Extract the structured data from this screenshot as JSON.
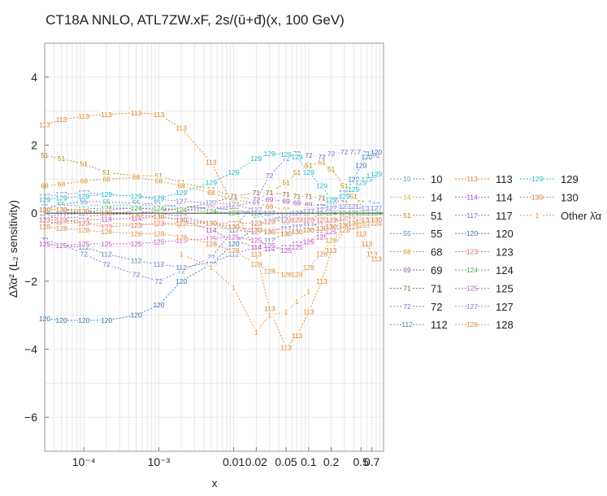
{
  "chart_data": {
    "type": "line",
    "title": "CT18A NNLO, ATL7ZW.xF, 2s/(ū+đ)(x, 100 GeV)",
    "xlabel": "x",
    "ylabel": "Δλ̄α² (L₂ sensitivity)",
    "xscale": "log",
    "xlim": [
      3e-05,
      1.0
    ],
    "ylim": [
      -7,
      5
    ],
    "x_ticks": [
      {
        "value": 0.0001,
        "label": "10⁻⁴"
      },
      {
        "value": 0.001,
        "label": "10⁻³"
      },
      {
        "value": 0.01,
        "label": "0.01"
      },
      {
        "value": 0.02,
        "label": "0.02"
      },
      {
        "value": 0.05,
        "label": "0.05"
      },
      {
        "value": 0.1,
        "label": "0.1"
      },
      {
        "value": 0.2,
        "label": "0.2"
      },
      {
        "value": 0.5,
        "label": "0.5"
      },
      {
        "value": 0.7,
        "label": "0.7"
      }
    ],
    "y_ticks": [
      4,
      2,
      0,
      -2,
      -4,
      -6
    ],
    "grid": true,
    "legend_position": "right",
    "x": [
      3e-05,
      5e-05,
      0.0001,
      0.0002,
      0.0005,
      0.001,
      0.002,
      0.005,
      0.01,
      0.02,
      0.03,
      0.05,
      0.07,
      0.1,
      0.15,
      0.2,
      0.3,
      0.4,
      0.5,
      0.6,
      0.7,
      0.8
    ],
    "series": [
      {
        "name": "10",
        "label": "10",
        "color": "#5b9bd5",
        "values": [
          0.2,
          0.22,
          0.23,
          0.24,
          0.24,
          0.22,
          0.18,
          0.15,
          0.1,
          -0.05,
          -0.15,
          -0.25,
          -0.2,
          -0.15,
          -0.1,
          -0.05,
          0.05,
          0.15,
          0.25,
          0.3,
          0.3,
          0.25
        ]
      },
      {
        "name": "14",
        "label": "14",
        "color": "#e8a33d",
        "values": [
          -0.3,
          -0.3,
          -0.3,
          -0.3,
          -0.32,
          -0.33,
          -0.35,
          -0.4,
          -0.5,
          -0.45,
          -0.5,
          -0.45,
          -0.4,
          -0.35,
          -0.3,
          -0.3,
          -0.25,
          -0.2,
          -0.15,
          -0.1,
          -0.05,
          0.0
        ]
      },
      {
        "name": "51",
        "label": "51",
        "color": "#b8860b",
        "values": [
          1.7,
          1.6,
          1.45,
          1.2,
          1.1,
          1.1,
          0.9,
          0.7,
          0.5,
          0.4,
          0.6,
          0.9,
          1.2,
          1.4,
          1.5,
          1.3,
          0.8,
          0.5,
          0.3,
          0.2,
          0.1,
          0.05
        ]
      },
      {
        "name": "55",
        "label": "55",
        "color": "#4a7fb0",
        "values": [
          0.1,
          0.25,
          0.35,
          0.33,
          0.3,
          0.26,
          0.2,
          0.15,
          0.1,
          0.0,
          -0.1,
          -0.2,
          -0.2,
          -0.15,
          -0.05,
          0.05,
          0.1,
          0.05,
          0.0,
          -0.05,
          -0.1,
          -0.1
        ]
      },
      {
        "name": "68",
        "label": "68",
        "color": "#d98c1f",
        "values": [
          0.8,
          0.85,
          0.95,
          1.0,
          1.05,
          0.95,
          0.8,
          0.6,
          0.4,
          0.3,
          0.2,
          0.1,
          0.05,
          0.0,
          -0.1,
          -0.15,
          -0.25,
          -0.3,
          -0.35,
          -0.35,
          -0.3,
          -0.3
        ]
      },
      {
        "name": "69",
        "label": "69",
        "color": "#9b4fb5",
        "values": [
          0.0,
          0.0,
          0.05,
          0.1,
          0.15,
          0.1,
          0.1,
          0.15,
          0.2,
          0.35,
          0.4,
          0.35,
          0.3,
          0.25,
          0.2,
          0.2,
          0.15,
          0.1,
          0.05,
          0.0,
          0.0,
          0.0
        ]
      },
      {
        "name": "71",
        "label": "71",
        "color": "#8b5a2b",
        "values": [
          -0.1,
          -0.15,
          -0.1,
          -0.05,
          0.0,
          0.05,
          0.15,
          0.3,
          0.5,
          0.6,
          0.6,
          0.55,
          0.5,
          0.5,
          0.45,
          0.4,
          0.3,
          0.2,
          0.1,
          0.1,
          0.05,
          0.05
        ]
      },
      {
        "name": "72",
        "label": "72",
        "color": "#7b68d6",
        "values": [
          -0.8,
          -0.9,
          -1.2,
          -1.5,
          -1.8,
          -2.0,
          -1.7,
          -1.3,
          -0.5,
          0.4,
          1.1,
          1.6,
          1.75,
          1.7,
          1.65,
          1.75,
          1.8,
          1.8,
          1.8,
          1.75,
          1.75,
          1.7
        ]
      },
      {
        "name": "112",
        "label": "112",
        "color": "#5a7dc0",
        "values": [
          -0.9,
          -0.95,
          -1.0,
          -1.2,
          -1.4,
          -1.5,
          -1.6,
          -1.45,
          -1.2,
          -1.0,
          -0.8,
          -0.6,
          -0.5,
          -0.4,
          -0.3,
          -0.2,
          -0.15,
          -0.1,
          -0.1,
          -0.1,
          -0.1,
          -0.1
        ]
      },
      {
        "name": "113",
        "label": "113",
        "color": "#e07b1a",
        "values": [
          2.6,
          2.75,
          2.85,
          2.9,
          2.95,
          2.9,
          2.5,
          1.5,
          0.2,
          -1.2,
          -2.8,
          -3.95,
          -3.6,
          -2.9,
          -2.0,
          -1.1,
          -0.5,
          -0.4,
          -0.6,
          -0.9,
          -1.2,
          -1.35
        ]
      },
      {
        "name": "114",
        "label": "114",
        "color": "#a347c4",
        "values": [
          -0.3,
          -0.25,
          -0.2,
          -0.18,
          -0.15,
          -0.1,
          -0.2,
          -0.5,
          -0.8,
          -1.0,
          -1.05,
          -1.0,
          -0.9,
          -0.8,
          -0.6,
          -0.4,
          -0.3,
          -0.2,
          -0.2,
          -0.25,
          -0.3,
          -0.3
        ]
      },
      {
        "name": "117",
        "label": "117",
        "color": "#6c6ccc",
        "values": [
          -0.1,
          -0.05,
          0.0,
          0.0,
          0.05,
          0.0,
          -0.1,
          -0.3,
          -0.5,
          -0.55,
          -0.5,
          -0.45,
          -0.4,
          -0.35,
          -0.3,
          -0.25,
          -0.2,
          -0.15,
          -0.1,
          -0.1,
          -0.1,
          -0.1
        ]
      },
      {
        "name": "120",
        "label": "120",
        "color": "#2e6fb3",
        "values": [
          -3.1,
          -3.15,
          -3.15,
          -3.15,
          -3.0,
          -2.7,
          -2.0,
          -1.5,
          -0.9,
          -0.4,
          -0.2,
          -0.05,
          0.0,
          0.1,
          0.2,
          0.3,
          0.6,
          1.0,
          1.4,
          1.65,
          1.75,
          1.8
        ]
      },
      {
        "name": "123",
        "label": "123",
        "color": "#e3675a",
        "values": [
          -0.2,
          -0.2,
          -0.3,
          -0.4,
          -0.35,
          -0.3,
          -0.3,
          -0.3,
          -0.3,
          -0.3,
          -0.25,
          -0.2,
          -0.2,
          -0.2,
          -0.2,
          -0.2,
          -0.15,
          -0.15,
          -0.1,
          -0.1,
          -0.1,
          -0.1
        ]
      },
      {
        "name": "124",
        "label": "124",
        "color": "#4caf50",
        "values": [
          0.1,
          0.1,
          0.12,
          0.15,
          0.15,
          0.15,
          0.1,
          0.05,
          0.0,
          0.0,
          0.0,
          0.0,
          0.0,
          0.0,
          0.0,
          0.0,
          0.0,
          0.0,
          0.0,
          0.0,
          0.0,
          0.0
        ]
      },
      {
        "name": "125",
        "label": "125",
        "color": "#c34fc3",
        "values": [
          -0.9,
          -0.95,
          -0.9,
          -0.9,
          -0.9,
          -0.85,
          -0.8,
          -0.75,
          -0.7,
          -0.8,
          -0.95,
          -1.1,
          -1.0,
          -0.85,
          -0.7,
          -0.55,
          -0.4,
          -0.3,
          -0.25,
          -0.2,
          -0.2,
          -0.2
        ]
      },
      {
        "name": "127",
        "label": "127",
        "color": "#8080e0",
        "values": [
          0.5,
          0.55,
          0.6,
          0.55,
          0.5,
          0.4,
          0.35,
          0.3,
          0.25,
          0.1,
          0.0,
          -0.05,
          0.0,
          0.05,
          0.1,
          0.15,
          0.2,
          0.2,
          0.2,
          0.15,
          0.15,
          0.15
        ]
      },
      {
        "name": "128",
        "label": "128",
        "color": "#e08a3a",
        "values": [
          -0.4,
          -0.45,
          -0.5,
          -0.55,
          -0.6,
          -0.6,
          -0.7,
          -0.9,
          -1.1,
          -1.5,
          -1.7,
          -1.8,
          -1.8,
          -1.6,
          -1.2,
          -0.8,
          -0.5,
          -0.4,
          -0.35,
          -0.3,
          -0.3,
          -0.3
        ]
      },
      {
        "name": "129",
        "label": "129",
        "color": "#1fb8c4",
        "values": [
          0.4,
          0.45,
          0.5,
          0.55,
          0.5,
          0.45,
          0.6,
          0.9,
          1.2,
          1.6,
          1.75,
          1.72,
          1.65,
          1.2,
          0.8,
          0.4,
          0.5,
          0.7,
          0.9,
          1.0,
          1.1,
          1.15
        ]
      },
      {
        "name": "130",
        "label": "130",
        "color": "#d0701e",
        "values": [
          0.1,
          0.1,
          0.05,
          0.0,
          -0.05,
          -0.1,
          -0.2,
          -0.3,
          -0.4,
          -0.5,
          -0.55,
          -0.6,
          -0.55,
          -0.5,
          -0.45,
          -0.4,
          -0.35,
          -0.3,
          -0.25,
          -0.2,
          -0.2,
          -0.2
        ]
      },
      {
        "name": "Other λ̄α",
        "label": "1",
        "color": "#e0873a",
        "values": [
          null,
          null,
          null,
          null,
          null,
          null,
          -1.2,
          -1.6,
          -2.2,
          -3.5,
          -3.0,
          -2.9,
          -2.6,
          -2.3,
          null,
          null,
          null,
          null,
          null,
          null,
          null,
          null
        ]
      }
    ]
  }
}
